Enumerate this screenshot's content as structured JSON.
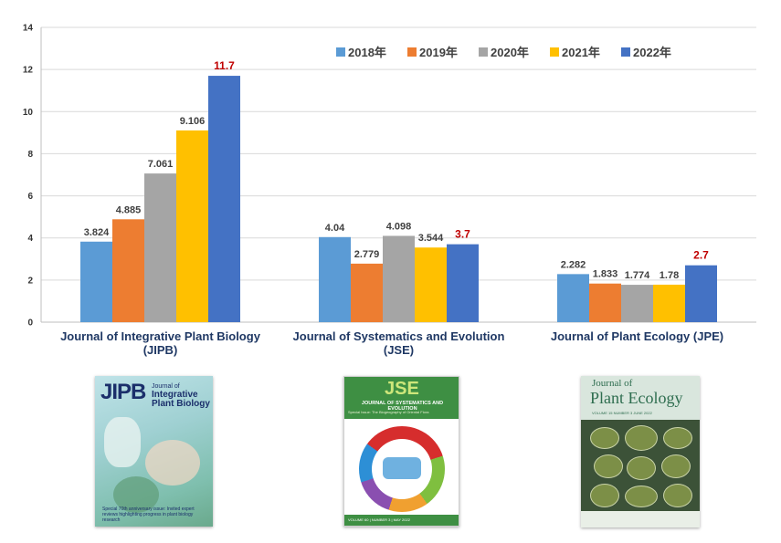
{
  "chart_data": {
    "type": "bar",
    "title": "",
    "xlabel": "",
    "ylabel": "",
    "ylim": [
      0,
      14
    ],
    "yticks": [
      0,
      2,
      4,
      6,
      8,
      10,
      12,
      14
    ],
    "grid": true,
    "legend_position": "top-right",
    "categories": [
      "Journal of Integrative Plant Biology\n(JIPB)",
      "Journal of Systematics and Evolution\n(JSE)",
      "Journal of Plant Ecology (JPE)"
    ],
    "series": [
      {
        "name": "2018年",
        "color": "#5b9bd5",
        "values": [
          3.824,
          4.04,
          2.282
        ],
        "labels": [
          "3.824",
          "4.04",
          "2.282"
        ]
      },
      {
        "name": "2019年",
        "color": "#ed7d31",
        "values": [
          4.885,
          2.779,
          1.833
        ],
        "labels": [
          "4.885",
          "2.779",
          "1.833"
        ]
      },
      {
        "name": "2020年",
        "color": "#a5a5a5",
        "values": [
          7.061,
          4.098,
          1.774
        ],
        "labels": [
          "7.061",
          "4.098",
          "1.774"
        ]
      },
      {
        "name": "2021年",
        "color": "#ffc000",
        "values": [
          9.106,
          3.544,
          1.78
        ],
        "labels": [
          "9.106",
          "3.544",
          "1.78"
        ]
      },
      {
        "name": "2022年",
        "color": "#4472c4",
        "values": [
          11.7,
          3.7,
          2.7
        ],
        "labels": [
          "11.7",
          "3.7",
          "2.7"
        ],
        "label_color": "#c00000"
      }
    ]
  },
  "covers": {
    "jipb": {
      "brand": "JIPB",
      "subtitle_small": "Journal of",
      "subtitle_big": "Integrative Plant Biology",
      "footer": "Special 70th anniversary issue: Invited expert reviews highlighting progress in plant biology research"
    },
    "jse": {
      "brand": "JSE",
      "subtitle": "JOURNAL OF SYSTEMATICS AND EVOLUTION",
      "issue": "Special Issue: The Biogeography of Oriental Flora",
      "bottom": "VOLUME 60 | NUMBER 3 | MAY 2022"
    },
    "jpe": {
      "small": "Journal of",
      "brand": "Plant Ecology",
      "sub": "VOLUME 15 NUMBER 3 JUNE 2022"
    }
  }
}
